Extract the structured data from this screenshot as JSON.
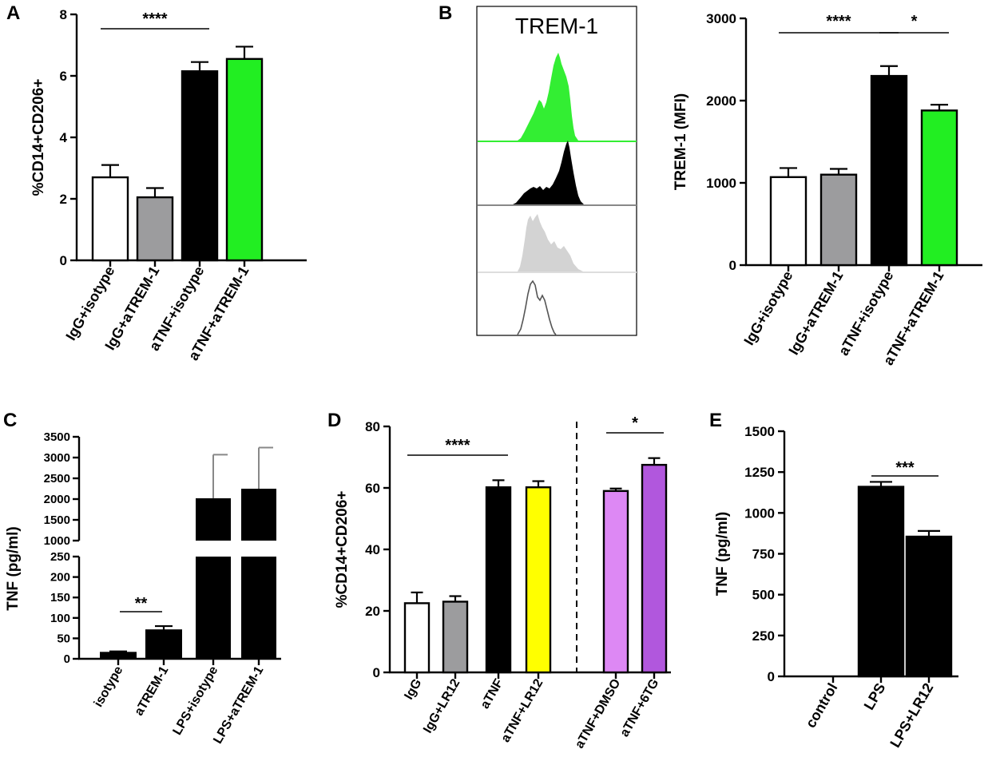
{
  "panels": [
    {
      "id": "A",
      "letter": "A"
    },
    {
      "id": "B",
      "letter": "B",
      "histogram_title": "TREM-1"
    },
    {
      "id": "C",
      "letter": "C"
    },
    {
      "id": "D",
      "letter": "D"
    },
    {
      "id": "E",
      "letter": "E"
    }
  ],
  "colors": {
    "white": "#ffffff",
    "gray": "#9c9c9e",
    "black": "#000000",
    "green": "#22ee22",
    "yellow": "#ffff00",
    "violet_light": "#dd88f4",
    "violet_dark": "#b157dd",
    "hist_green": "#33ee33",
    "hist_gray": "#d3d3d3"
  },
  "chart_data": [
    {
      "panel": "A",
      "type": "bar",
      "ylabel": "%CD14+CD206+",
      "ylim": [
        0,
        8
      ],
      "yticks": [
        0,
        2,
        4,
        6,
        8
      ],
      "categories": [
        "IgG+isotype",
        "IgG+aTREM-1",
        "aTNF+isotype",
        "aTNF+aTREM-1"
      ],
      "values": [
        2.7,
        2.05,
        6.15,
        6.55
      ],
      "errors": [
        0.4,
        0.3,
        0.3,
        0.4
      ],
      "bar_colors": [
        "#ffffff",
        "#9c9c9e",
        "#000000",
        "#22ee22"
      ],
      "significance": [
        {
          "from": 0,
          "to": 2,
          "label": "****"
        }
      ]
    },
    {
      "panel": "B",
      "type": "bar",
      "ylabel": "TREM-1 (MFI)",
      "ylim": [
        0,
        3000
      ],
      "yticks": [
        0,
        1000,
        2000,
        3000
      ],
      "categories": [
        "IgG+isotype",
        "IgG+aTREM-1",
        "aTNF+isotype",
        "aTNF+aTREM-1"
      ],
      "values": [
        1070,
        1100,
        2300,
        1880
      ],
      "errors": [
        110,
        70,
        120,
        70
      ],
      "bar_colors": [
        "#ffffff",
        "#9c9c9e",
        "#000000",
        "#22ee22"
      ],
      "significance": [
        {
          "from": 0,
          "to": 2,
          "label": "****"
        },
        {
          "from": 2,
          "to": 3,
          "label": "*"
        }
      ]
    },
    {
      "panel": "C",
      "type": "bar",
      "ylabel": "TNF (pg/ml)",
      "broken_axis": true,
      "lower_range": [
        0,
        250
      ],
      "lower_ticks": [
        0,
        50,
        100,
        150,
        200,
        250
      ],
      "upper_range": [
        1000,
        3500
      ],
      "upper_ticks": [
        1000,
        1500,
        2000,
        2500,
        3000,
        3500
      ],
      "categories": [
        "isotype",
        "aTREM-1",
        "LPS+isotype",
        "LPS+aTREM-1"
      ],
      "values": [
        15,
        70,
        2020,
        2250
      ],
      "errors": [
        3,
        10,
        1050,
        990
      ],
      "bar_colors": [
        "#000000",
        "#000000",
        "#000000",
        "#000000"
      ],
      "significance": [
        {
          "from": 0,
          "to": 1,
          "label": "**"
        }
      ]
    },
    {
      "panel": "D",
      "type": "bar",
      "ylabel": "%CD14+CD206+",
      "ylim": [
        0,
        80
      ],
      "yticks": [
        0,
        20,
        40,
        60,
        80
      ],
      "categories": [
        "IgG",
        "IgG+LR12",
        "aTNF",
        "aTNF+LR12",
        "aTNF+DMSO",
        "aTNF+6TG"
      ],
      "values": [
        22.5,
        23,
        60.2,
        60.2,
        59,
        67.5
      ],
      "errors": [
        3.5,
        1.8,
        2.3,
        2,
        0.8,
        2.2
      ],
      "bar_colors": [
        "#ffffff",
        "#9c9c9e",
        "#000000",
        "#ffff00",
        "#dd88f4",
        "#b157dd"
      ],
      "significance": [
        {
          "from": 0,
          "to": 2,
          "label": "****"
        },
        {
          "from": 4,
          "to": 5,
          "label": "*"
        }
      ]
    },
    {
      "panel": "E",
      "type": "bar",
      "ylabel": "TNF (pg/ml)",
      "ylim": [
        0,
        1500
      ],
      "yticks": [
        0,
        250,
        500,
        750,
        1000,
        1250,
        1500
      ],
      "categories": [
        "control",
        "LPS",
        "LPS+LR12"
      ],
      "values": [
        0,
        1160,
        855
      ],
      "errors": [
        0,
        30,
        35
      ],
      "bar_colors": [
        "#000000",
        "#000000",
        "#000000"
      ],
      "significance": [
        {
          "from": 1,
          "to": 2,
          "label": "***"
        }
      ]
    }
  ]
}
